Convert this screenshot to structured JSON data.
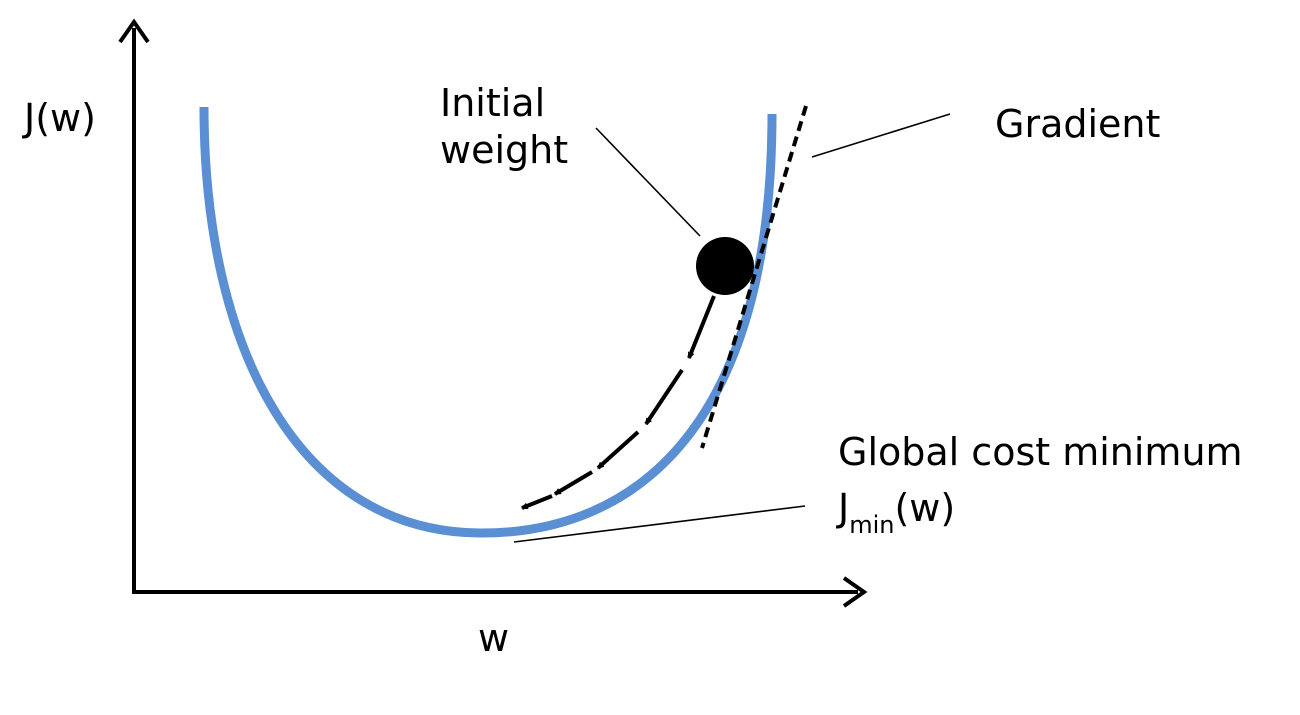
{
  "axes": {
    "y_label": "J(w)",
    "x_label": "w"
  },
  "annotations": {
    "initial_weight_line1": "Initial",
    "initial_weight_line2": "weight",
    "gradient": "Gradient",
    "global_minimum": "Global cost minimum",
    "jmin_base": "J",
    "jmin_sub": "min",
    "jmin_suffix": "(w)"
  },
  "colors": {
    "curve": "#5B8FD3",
    "axes": "#000000",
    "point": "#000000"
  }
}
